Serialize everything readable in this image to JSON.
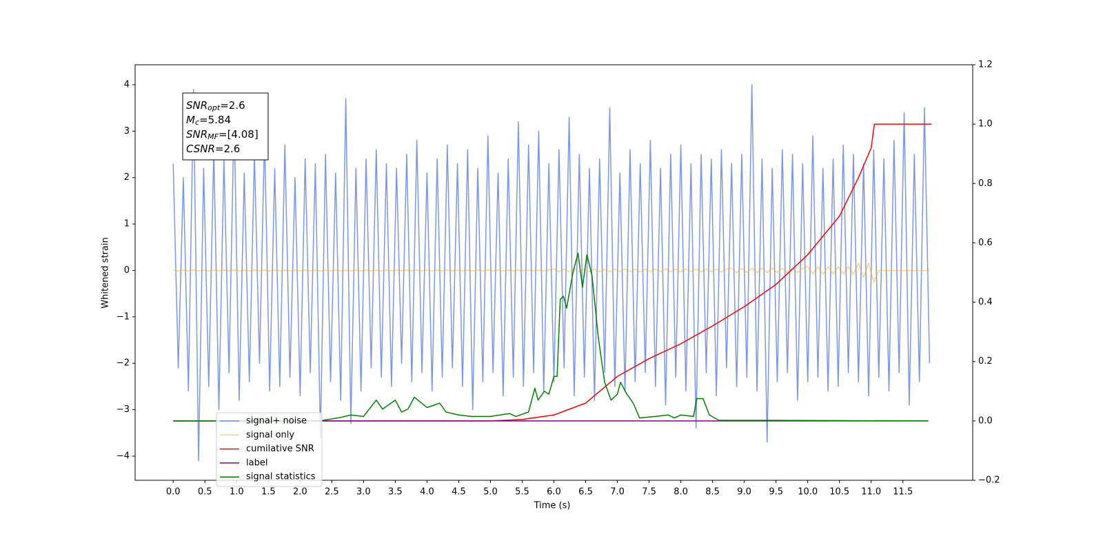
{
  "chart_data": {
    "type": "line",
    "xlabel": "Time (s)",
    "ylabel": "Whitened strain",
    "legend": "lower left",
    "xlim": [
      -0.6,
      12.6
    ],
    "ylim": [
      -4.52,
      4.43
    ],
    "y2lim": [
      -0.2,
      1.2
    ],
    "xticks": [
      {
        "value": 0,
        "label": "0.0"
      },
      {
        "value": 0.5,
        "label": "0.5"
      },
      {
        "value": 1,
        "label": "1.0"
      },
      {
        "value": 1.5,
        "label": "1.5"
      },
      {
        "value": 2,
        "label": "2.0"
      },
      {
        "value": 2.5,
        "label": "2.5"
      },
      {
        "value": 3,
        "label": "3.0"
      },
      {
        "value": 3.5,
        "label": "3.5"
      },
      {
        "value": 4,
        "label": "4.0"
      },
      {
        "value": 4.5,
        "label": "4.5"
      },
      {
        "value": 5,
        "label": "5.0"
      },
      {
        "value": 5.5,
        "label": "5.5"
      },
      {
        "value": 6,
        "label": "6.0"
      },
      {
        "value": 6.5,
        "label": "6.5"
      },
      {
        "value": 7,
        "label": "7.0"
      },
      {
        "value": 7.5,
        "label": "7.5"
      },
      {
        "value": 8,
        "label": "8.0"
      },
      {
        "value": 8.5,
        "label": "8.5"
      },
      {
        "value": 9,
        "label": "9.0"
      },
      {
        "value": 9.5,
        "label": "9.5"
      },
      {
        "value": 10,
        "label": "10.0"
      },
      {
        "value": 10.5,
        "label": "10.5"
      },
      {
        "value": 11,
        "label": "11.0"
      },
      {
        "value": 11.5,
        "label": "11.5"
      }
    ],
    "yticks": [
      {
        "value": -4,
        "label": "−4"
      },
      {
        "value": -3,
        "label": "−3"
      },
      {
        "value": -2,
        "label": "−2"
      },
      {
        "value": -1,
        "label": "−1"
      },
      0,
      1,
      2,
      3,
      4
    ],
    "y2ticks": [
      {
        "value": -0.2,
        "label": "−0.2"
      },
      {
        "value": 0,
        "label": "0.0"
      },
      0.2,
      0.4,
      0.6,
      0.8,
      {
        "value": 1,
        "label": "1.0"
      },
      1.2
    ],
    "annotation_box": [
      {
        "text": "SNR",
        "sub": "opt",
        "value": "=2.6"
      },
      {
        "text": "M",
        "sub": "c",
        "value": "=5.84"
      },
      {
        "text": "SNR",
        "sub": "MF",
        "value": "=[4.08]"
      },
      {
        "text": "CSNR",
        "sub": "",
        "value": "=2.6"
      }
    ],
    "x": [
      0,
      0.08,
      0.16,
      0.24,
      0.32,
      0.4,
      0.48,
      0.56,
      0.64,
      0.72,
      0.8,
      0.88,
      0.96,
      1.04,
      1.12,
      1.2,
      1.28,
      1.36,
      1.44,
      1.52,
      1.6,
      1.68,
      1.76,
      1.84,
      1.92,
      2,
      2.08,
      2.16,
      2.24,
      2.32,
      2.4,
      2.48,
      2.56,
      2.64,
      2.72,
      2.8,
      2.88,
      2.96,
      3.04,
      3.12,
      3.2,
      3.28,
      3.36,
      3.44,
      3.52,
      3.6,
      3.68,
      3.76,
      3.84,
      3.92,
      4,
      4.08,
      4.16,
      4.24,
      4.32,
      4.4,
      4.48,
      4.56,
      4.64,
      4.72,
      4.8,
      4.88,
      4.96,
      5.04,
      5.12,
      5.2,
      5.28,
      5.36,
      5.44,
      5.52,
      5.6,
      5.68,
      5.76,
      5.84,
      5.92,
      6,
      6.08,
      6.16,
      6.24,
      6.32,
      6.4,
      6.48,
      6.56,
      6.64,
      6.72,
      6.8,
      6.88,
      6.96,
      7.04,
      7.12,
      7.2,
      7.28,
      7.36,
      7.44,
      7.52,
      7.6,
      7.68,
      7.76,
      7.84,
      7.92,
      8,
      8.08,
      8.16,
      8.24,
      8.32,
      8.4,
      8.48,
      8.56,
      8.64,
      8.72,
      8.8,
      8.88,
      8.96,
      9.04,
      9.12,
      9.2,
      9.28,
      9.36,
      9.44,
      9.52,
      9.6,
      9.68,
      9.76,
      9.84,
      9.92,
      10,
      10.08,
      10.16,
      10.24,
      10.32,
      10.4,
      10.48,
      10.56,
      10.64,
      10.72,
      10.8,
      10.88,
      10.96,
      11.04,
      11.12,
      11.2,
      11.28,
      11.36,
      11.44,
      11.52,
      11.6,
      11.68,
      11.76,
      11.84,
      11.92
    ],
    "series": [
      {
        "name": "signal+ noise",
        "color": "royalblue",
        "alpha": 0.7,
        "values": [
          2.3,
          -2.1,
          2.0,
          -2.6,
          3.9,
          -4.1,
          2.2,
          -2.5,
          2.6,
          -3.0,
          2.4,
          -2.2,
          3.4,
          -2.8,
          2.1,
          -2.4,
          2.5,
          -2.0,
          2.9,
          -2.6,
          2.2,
          -2.5,
          2.7,
          -2.3,
          2.0,
          -2.7,
          2.4,
          -2.2,
          2.3,
          -3.6,
          2.5,
          -2.4,
          2.1,
          -2.8,
          3.7,
          -3.3,
          2.2,
          -2.6,
          2.4,
          -2.1,
          2.6,
          -2.3,
          2.3,
          -2.5,
          2.2,
          -2.0,
          2.5,
          -2.4,
          2.8,
          -2.2,
          2.1,
          -2.6,
          2.4,
          -2.3,
          2.7,
          -2.1,
          2.3,
          -2.5,
          2.6,
          -3.0,
          2.2,
          -2.4,
          2.9,
          -2.2,
          2.1,
          -2.7,
          2.4,
          -2.3,
          3.2,
          -2.5,
          2.7,
          -2.2,
          3.0,
          -2.6,
          2.3,
          -2.4,
          2.6,
          -2.1,
          3.3,
          -2.7,
          2.5,
          -2.3,
          2.2,
          -2.8,
          2.4,
          -2.2,
          3.5,
          -2.5,
          2.1,
          -2.6,
          2.6,
          -2.4,
          2.3,
          -2.2,
          2.8,
          -2.5,
          2.2,
          -2.9,
          2.5,
          -2.3,
          2.7,
          -2.6,
          2.3,
          -3.4,
          2.5,
          -2.2,
          2.4,
          -2.7,
          2.6,
          -2.1,
          2.3,
          -2.5,
          2.5,
          -2.3,
          4.0,
          -2.6,
          2.4,
          -3.7,
          2.2,
          -2.4,
          2.6,
          -2.2,
          2.5,
          -2.8,
          2.3,
          -2.4,
          2.9,
          -2.3,
          2.2,
          -2.6,
          2.4,
          -2.5,
          2.7,
          -2.2,
          2.5,
          -2.4,
          2.3,
          -2.7,
          2.6,
          -2.3,
          2.4,
          -2.6,
          2.8,
          -2.2,
          3.4,
          -2.9,
          2.5,
          -2.4,
          3.5,
          -2.0
        ]
      },
      {
        "name": "signal only",
        "color": "orange",
        "alpha": 0.5,
        "values": [
          0.01,
          -0.01,
          0.01,
          -0.01,
          0.01,
          -0.01,
          0.01,
          -0.01,
          0.01,
          -0.01,
          0.01,
          -0.01,
          0.01,
          -0.01,
          0.01,
          -0.01,
          0.01,
          -0.01,
          0.01,
          -0.01,
          0.01,
          -0.01,
          0.01,
          -0.01,
          0.01,
          -0.01,
          0.01,
          -0.01,
          0.01,
          -0.01,
          0.01,
          -0.01,
          0.01,
          -0.01,
          0.01,
          -0.01,
          0.01,
          -0.01,
          0.01,
          -0.01,
          0.01,
          -0.01,
          0.01,
          -0.01,
          0.01,
          -0.01,
          0.01,
          -0.01,
          0.01,
          -0.01,
          0.01,
          -0.01,
          0.01,
          -0.01,
          0.01,
          -0.01,
          0.01,
          -0.01,
          0.01,
          -0.01,
          0.01,
          -0.01,
          0.01,
          -0.01,
          0.01,
          -0.01,
          0.01,
          -0.01,
          0.01,
          -0.01,
          0.01,
          -0.01,
          0.01,
          -0.01,
          0.01,
          0.03,
          -0.03,
          0.03,
          -0.03,
          0.03,
          -0.03,
          0.03,
          -0.03,
          0.03,
          -0.03,
          0.03,
          -0.03,
          0.03,
          -0.03,
          0.03,
          -0.03,
          0.03,
          -0.03,
          0.03,
          -0.03,
          0.03,
          -0.03,
          0.03,
          -0.03,
          0.03,
          -0.03,
          0.03,
          -0.03,
          0.03,
          -0.03,
          0.03,
          -0.03,
          0.03,
          -0.03,
          0.03,
          0.05,
          -0.05,
          0.05,
          -0.05,
          0.05,
          -0.05,
          0.05,
          -0.05,
          0.05,
          -0.05,
          0.05,
          -0.05,
          0.05,
          -0.05,
          0.05,
          0.08,
          -0.08,
          0.08,
          -0.08,
          0.08,
          -0.08,
          0.08,
          -0.08,
          0.08,
          -0.08,
          0.15,
          -0.15,
          0.15,
          -0.25,
          0,
          0,
          0,
          0,
          0,
          0,
          0,
          0,
          0,
          0,
          0
        ]
      },
      {
        "name": "cumilative SNR",
        "color": "red",
        "axis": "y2",
        "x": [
          0,
          5.0,
          5.5,
          6.0,
          6.5,
          7.0,
          7.5,
          8.0,
          8.5,
          9.0,
          9.5,
          10.0,
          10.5,
          10.8,
          11.0,
          11.05,
          11.95
        ],
        "values": [
          0,
          0,
          0.005,
          0.02,
          0.06,
          0.15,
          0.21,
          0.26,
          0.32,
          0.385,
          0.46,
          0.56,
          0.69,
          0.82,
          0.92,
          1.0,
          1.0
        ]
      },
      {
        "name": "label",
        "color": "purple",
        "axis": "y2",
        "x": [
          0,
          11.9
        ],
        "values": [
          0,
          0
        ]
      },
      {
        "name": "signal statistics",
        "color": "green",
        "axis": "y2",
        "x": [
          0,
          2.3,
          2.6,
          2.8,
          3.0,
          3.2,
          3.3,
          3.5,
          3.6,
          3.7,
          3.8,
          4.0,
          4.2,
          4.3,
          4.5,
          4.7,
          5.0,
          5.3,
          5.4,
          5.6,
          5.7,
          5.75,
          5.85,
          5.92,
          6.0,
          6.05,
          6.1,
          6.15,
          6.2,
          6.3,
          6.38,
          6.45,
          6.52,
          6.6,
          6.7,
          6.8,
          6.9,
          7.0,
          7.05,
          7.15,
          7.25,
          7.35,
          7.6,
          7.8,
          7.9,
          8.0,
          8.2,
          8.25,
          8.35,
          8.45,
          8.6,
          9.5,
          11.9
        ],
        "values": [
          0,
          0,
          0.01,
          0.02,
          0.015,
          0.07,
          0.04,
          0.07,
          0.03,
          0.04,
          0.08,
          0.045,
          0.06,
          0.03,
          0.02,
          0.015,
          0.015,
          0.025,
          0.015,
          0.03,
          0.11,
          0.07,
          0.1,
          0.09,
          0.15,
          0.15,
          0.41,
          0.42,
          0.38,
          0.5,
          0.565,
          0.45,
          0.56,
          0.49,
          0.28,
          0.13,
          0.07,
          0.09,
          0.13,
          0.09,
          0.06,
          0.01,
          0.015,
          0.02,
          0.01,
          0.02,
          0.015,
          0.075,
          0.075,
          0.02,
          0.002,
          0.002,
          0
        ]
      }
    ]
  }
}
